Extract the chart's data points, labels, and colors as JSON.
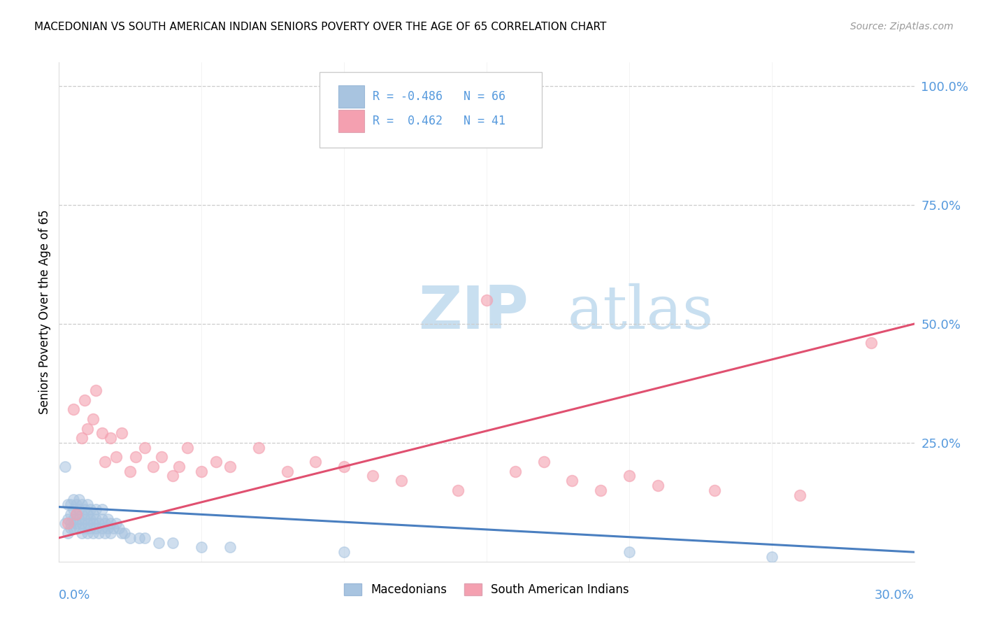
{
  "title": "MACEDONIAN VS SOUTH AMERICAN INDIAN SENIORS POVERTY OVER THE AGE OF 65 CORRELATION CHART",
  "source": "Source: ZipAtlas.com",
  "ylabel": "Seniors Poverty Over the Age of 65",
  "ytick_labels": [
    "100.0%",
    "75.0%",
    "50.0%",
    "25.0%"
  ],
  "ytick_values": [
    1.0,
    0.75,
    0.5,
    0.25
  ],
  "xlim": [
    0.0,
    0.3
  ],
  "ylim": [
    0.0,
    1.05
  ],
  "macedonian_R": -0.486,
  "macedonian_N": 66,
  "south_american_R": 0.462,
  "south_american_N": 41,
  "macedonian_color": "#a8c4e0",
  "south_american_color": "#f4a0b0",
  "macedonian_line_color": "#4a7fc0",
  "south_american_line_color": "#e05070",
  "right_axis_color": "#5599dd",
  "watermark_zip": "ZIP",
  "watermark_atlas": "atlas",
  "watermark_color_zip": "#c8dff0",
  "watermark_color_atlas": "#c8dff0",
  "macedonian_x": [
    0.002,
    0.002,
    0.003,
    0.003,
    0.003,
    0.004,
    0.004,
    0.004,
    0.004,
    0.005,
    0.005,
    0.005,
    0.005,
    0.006,
    0.006,
    0.006,
    0.007,
    0.007,
    0.007,
    0.007,
    0.008,
    0.008,
    0.008,
    0.008,
    0.009,
    0.009,
    0.009,
    0.01,
    0.01,
    0.01,
    0.01,
    0.011,
    0.011,
    0.011,
    0.012,
    0.012,
    0.012,
    0.013,
    0.013,
    0.013,
    0.014,
    0.014,
    0.015,
    0.015,
    0.015,
    0.016,
    0.016,
    0.017,
    0.017,
    0.018,
    0.018,
    0.019,
    0.02,
    0.021,
    0.022,
    0.023,
    0.025,
    0.028,
    0.03,
    0.035,
    0.04,
    0.05,
    0.06,
    0.1,
    0.2,
    0.25
  ],
  "macedonian_y": [
    0.2,
    0.08,
    0.12,
    0.09,
    0.06,
    0.1,
    0.08,
    0.12,
    0.07,
    0.11,
    0.09,
    0.13,
    0.07,
    0.1,
    0.12,
    0.08,
    0.13,
    0.09,
    0.11,
    0.07,
    0.1,
    0.12,
    0.08,
    0.06,
    0.11,
    0.09,
    0.07,
    0.12,
    0.1,
    0.08,
    0.06,
    0.11,
    0.09,
    0.07,
    0.1,
    0.08,
    0.06,
    0.09,
    0.07,
    0.11,
    0.08,
    0.06,
    0.09,
    0.07,
    0.11,
    0.08,
    0.06,
    0.09,
    0.07,
    0.08,
    0.06,
    0.07,
    0.08,
    0.07,
    0.06,
    0.06,
    0.05,
    0.05,
    0.05,
    0.04,
    0.04,
    0.03,
    0.03,
    0.02,
    0.02,
    0.01
  ],
  "south_american_x": [
    0.003,
    0.005,
    0.006,
    0.008,
    0.009,
    0.01,
    0.012,
    0.013,
    0.015,
    0.016,
    0.018,
    0.02,
    0.022,
    0.025,
    0.027,
    0.03,
    0.033,
    0.036,
    0.04,
    0.042,
    0.045,
    0.05,
    0.055,
    0.06,
    0.07,
    0.08,
    0.09,
    0.1,
    0.11,
    0.12,
    0.14,
    0.15,
    0.16,
    0.17,
    0.18,
    0.19,
    0.2,
    0.21,
    0.23,
    0.26,
    0.285
  ],
  "south_american_y": [
    0.08,
    0.32,
    0.1,
    0.26,
    0.34,
    0.28,
    0.3,
    0.36,
    0.27,
    0.21,
    0.26,
    0.22,
    0.27,
    0.19,
    0.22,
    0.24,
    0.2,
    0.22,
    0.18,
    0.2,
    0.24,
    0.19,
    0.21,
    0.2,
    0.24,
    0.19,
    0.21,
    0.2,
    0.18,
    0.17,
    0.15,
    0.55,
    0.19,
    0.21,
    0.17,
    0.15,
    0.18,
    0.16,
    0.15,
    0.14,
    0.46
  ],
  "mac_trend_x": [
    0.0,
    0.3
  ],
  "mac_trend_y": [
    0.115,
    0.02
  ],
  "sa_trend_x": [
    0.0,
    0.3
  ],
  "sa_trend_y": [
    0.05,
    0.5
  ]
}
